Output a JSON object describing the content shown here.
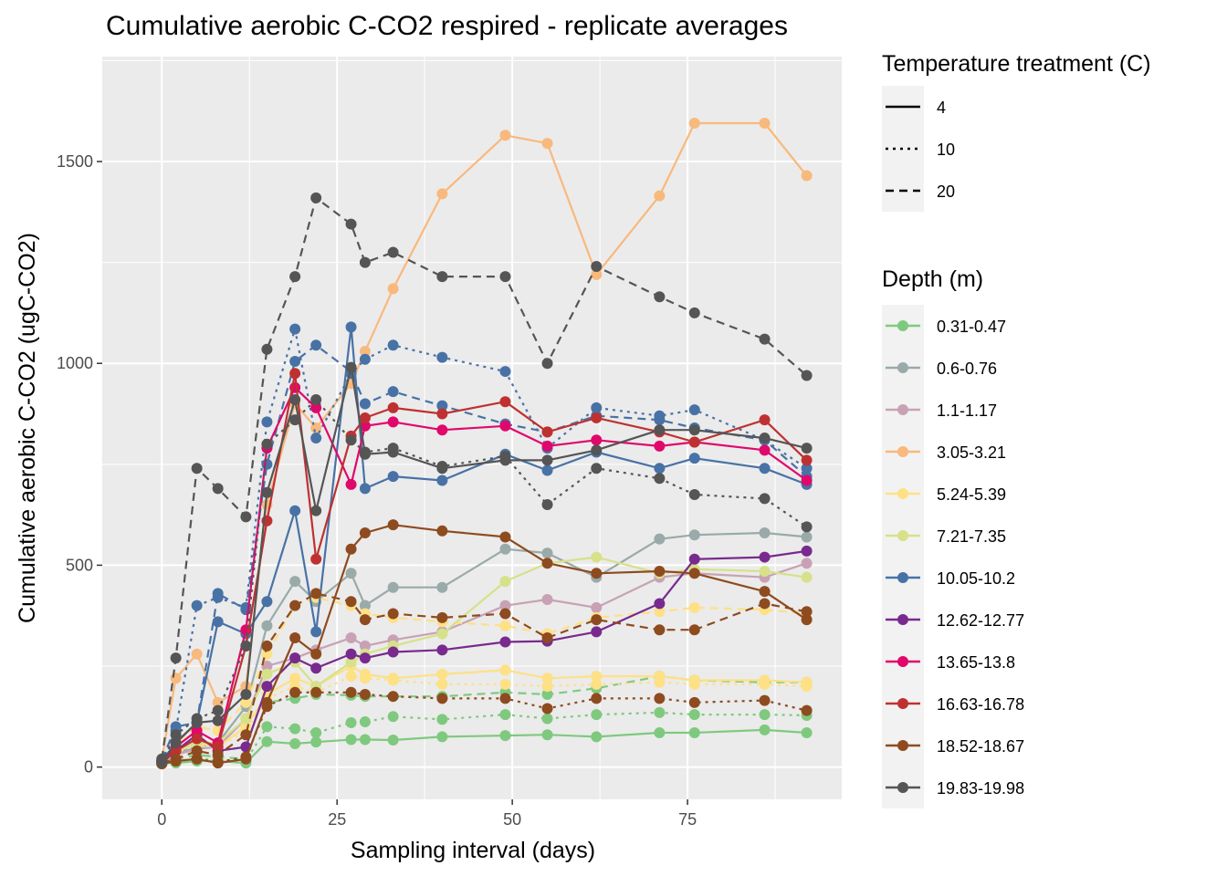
{
  "chart_data": {
    "type": "line",
    "title": "Cumulative aerobic C-CO2 respired - replicate averages",
    "xlabel": "Sampling interval (days)",
    "ylabel": "Cumulative aerobic C-CO2 (ugC-CO2)",
    "xlim": [
      -8.5,
      97
    ],
    "ylim": [
      -80,
      1760
    ],
    "x_ticks": [
      0,
      25,
      50,
      75
    ],
    "y_ticks": [
      0,
      500,
      1000,
      1500
    ],
    "grid": true,
    "x": [
      0,
      2,
      5,
      8,
      12,
      15,
      19,
      22,
      27,
      29,
      33,
      40,
      49,
      55,
      62,
      71,
      76,
      86,
      92
    ],
    "legend_placement": "right",
    "linetype_legend": {
      "title": "Temperature treatment (C)",
      "entries": [
        {
          "label": "4",
          "dash": "solid"
        },
        {
          "label": "10",
          "dash": "dotted"
        },
        {
          "label": "20",
          "dash": "dashed"
        }
      ]
    },
    "color_legend": {
      "title": "Depth (m)",
      "entries": [
        {
          "label": "0.31-0.47",
          "color": "#7fc97f"
        },
        {
          "label": "0.6-0.76",
          "color": "#99aaa9"
        },
        {
          "label": "1.1-1.17",
          "color": "#c8a2b4"
        },
        {
          "label": "3.05-3.21",
          "color": "#f8b97d"
        },
        {
          "label": "5.24-5.39",
          "color": "#fee085"
        },
        {
          "label": "7.21-7.35",
          "color": "#d6e189"
        },
        {
          "label": "10.05-10.2",
          "color": "#4872a6"
        },
        {
          "label": "12.62-12.77",
          "color": "#782a8e"
        },
        {
          "label": "13.65-13.8",
          "color": "#e0086b"
        },
        {
          "label": "16.63-16.78",
          "color": "#bf3131"
        },
        {
          "label": "18.52-18.67",
          "color": "#8e4b1f"
        },
        {
          "label": "19.83-19.98",
          "color": "#555555"
        }
      ]
    },
    "series": [
      {
        "depth": "0.31-0.47",
        "temperature": "4",
        "color": "#7fc97f",
        "dash": "solid",
        "values": [
          10,
          10,
          15,
          15,
          10,
          63,
          58,
          62,
          68,
          68,
          67,
          75,
          78,
          80,
          75,
          85,
          85,
          92,
          85
        ]
      },
      {
        "depth": "0.31-0.47",
        "temperature": "10",
        "color": "#7fc97f",
        "dash": "dotted",
        "values": [
          12,
          15,
          20,
          18,
          15,
          100,
          95,
          85,
          110,
          112,
          125,
          118,
          130,
          120,
          130,
          135,
          130,
          130,
          128
        ]
      },
      {
        "depth": "0.31-0.47",
        "temperature": "20",
        "color": "#7fc97f",
        "dash": "dashed",
        "values": [
          15,
          20,
          30,
          25,
          20,
          160,
          170,
          180,
          178,
          175,
          175,
          175,
          185,
          180,
          195,
          225,
          215,
          210,
          210
        ]
      },
      {
        "depth": "0.6-0.76",
        "temperature": "4",
        "color": "#99aaa9",
        "dash": "solid",
        "values": [
          15,
          35,
          50,
          60,
          150,
          350,
          460,
          410,
          480,
          400,
          445,
          445,
          540,
          530,
          470,
          565,
          575,
          580,
          570
        ]
      },
      {
        "depth": "1.1-1.17",
        "temperature": "4",
        "color": "#c8a2b4",
        "dash": "solid",
        "values": [
          12,
          30,
          45,
          50,
          120,
          250,
          270,
          290,
          320,
          300,
          315,
          335,
          400,
          415,
          395,
          470,
          480,
          470,
          505
        ]
      },
      {
        "depth": "3.05-3.21",
        "temperature": "4",
        "color": "#f8b97d",
        "dash": "solid",
        "values": [
          20,
          220,
          280,
          160,
          200,
          650,
          900,
          840,
          950,
          1030,
          1185,
          1420,
          1565,
          1545,
          1220,
          1415,
          1595,
          1595,
          1465
        ]
      },
      {
        "depth": "5.24-5.39",
        "temperature": "4",
        "color": "#fee085",
        "dash": "solid",
        "values": [
          12,
          40,
          60,
          50,
          100,
          180,
          220,
          200,
          250,
          230,
          220,
          230,
          240,
          220,
          225,
          225,
          215,
          215,
          210
        ]
      },
      {
        "depth": "5.24-5.39",
        "temperature": "10",
        "color": "#fee085",
        "dash": "dotted",
        "values": [
          12,
          35,
          55,
          50,
          90,
          170,
          200,
          185,
          225,
          220,
          215,
          205,
          205,
          200,
          205,
          210,
          205,
          205,
          200
        ]
      },
      {
        "depth": "5.24-5.39",
        "temperature": "20",
        "color": "#fee085",
        "dash": "dashed",
        "values": [
          15,
          60,
          100,
          90,
          160,
          280,
          400,
          420,
          400,
          380,
          370,
          360,
          350,
          330,
          370,
          385,
          395,
          390,
          380
        ]
      },
      {
        "depth": "7.21-7.35",
        "temperature": "4",
        "color": "#d6e189",
        "dash": "solid",
        "values": [
          12,
          40,
          60,
          60,
          120,
          230,
          260,
          200,
          260,
          280,
          300,
          330,
          460,
          505,
          520,
          480,
          490,
          485,
          470
        ]
      },
      {
        "depth": "10.05-10.2",
        "temperature": "4",
        "color": "#4872a6",
        "dash": "solid",
        "values": [
          15,
          60,
          110,
          360,
          330,
          410,
          635,
          335,
          1090,
          690,
          720,
          710,
          775,
          735,
          780,
          740,
          765,
          740,
          700
        ]
      },
      {
        "depth": "10.05-10.2",
        "temperature": "10",
        "color": "#4872a6",
        "dash": "dotted",
        "values": [
          15,
          90,
          400,
          420,
          395,
          855,
          1085,
          815,
          975,
          1010,
          1045,
          1015,
          980,
          790,
          890,
          870,
          885,
          810,
          740
        ]
      },
      {
        "depth": "10.05-10.2",
        "temperature": "20",
        "color": "#4872a6",
        "dash": "dashed",
        "values": [
          18,
          100,
          110,
          430,
          390,
          750,
          1005,
          1045,
          980,
          900,
          930,
          895,
          850,
          830,
          870,
          860,
          840,
          810,
          720
        ]
      },
      {
        "depth": "12.62-12.77",
        "temperature": "4",
        "color": "#782a8e",
        "dash": "solid",
        "values": [
          10,
          40,
          80,
          40,
          50,
          200,
          270,
          245,
          280,
          270,
          285,
          290,
          310,
          312,
          335,
          405,
          515,
          520,
          535
        ]
      },
      {
        "depth": "13.65-13.8",
        "temperature": "4",
        "color": "#e0086b",
        "dash": "solid",
        "values": [
          15,
          50,
          90,
          60,
          340,
          790,
          940,
          890,
          700,
          845,
          855,
          835,
          845,
          795,
          810,
          795,
          805,
          785,
          710
        ]
      },
      {
        "depth": "16.63-16.78",
        "temperature": "4",
        "color": "#bf3131",
        "dash": "solid",
        "values": [
          15,
          40,
          70,
          50,
          300,
          610,
          975,
          515,
          820,
          865,
          890,
          875,
          905,
          830,
          865,
          830,
          805,
          860,
          760
        ]
      },
      {
        "depth": "18.52-18.67",
        "temperature": "4",
        "color": "#8e4b1f",
        "dash": "solid",
        "values": [
          8,
          15,
          20,
          10,
          20,
          160,
          320,
          280,
          540,
          580,
          600,
          585,
          570,
          505,
          480,
          485,
          480,
          435,
          365
        ]
      },
      {
        "depth": "18.52-18.67",
        "temperature": "10",
        "color": "#8e4b1f",
        "dash": "dotted",
        "values": [
          8,
          15,
          20,
          12,
          25,
          150,
          185,
          185,
          185,
          180,
          175,
          170,
          170,
          145,
          170,
          170,
          160,
          165,
          140
        ]
      },
      {
        "depth": "18.52-18.67",
        "temperature": "20",
        "color": "#8e4b1f",
        "dash": "dashed",
        "values": [
          10,
          20,
          40,
          30,
          80,
          300,
          400,
          430,
          410,
          365,
          380,
          370,
          380,
          320,
          365,
          340,
          340,
          405,
          385
        ]
      },
      {
        "depth": "19.83-19.98",
        "temperature": "4",
        "color": "#555555",
        "dash": "solid",
        "values": [
          12,
          60,
          110,
          115,
          180,
          680,
          910,
          635,
          990,
          775,
          780,
          740,
          760,
          760,
          785,
          835,
          835,
          815,
          790
        ]
      },
      {
        "depth": "19.83-19.98",
        "temperature": "10",
        "color": "#555555",
        "dash": "dotted",
        "values": [
          12,
          80,
          120,
          140,
          300,
          800,
          860,
          910,
          810,
          780,
          790,
          745,
          770,
          650,
          740,
          715,
          675,
          665,
          595
        ]
      },
      {
        "depth": "19.83-19.98",
        "temperature": "20",
        "color": "#555555",
        "dash": "dashed",
        "values": [
          20,
          270,
          740,
          690,
          620,
          1035,
          1215,
          1410,
          1345,
          1250,
          1275,
          1215,
          1215,
          1000,
          1240,
          1165,
          1125,
          1060,
          970
        ]
      }
    ]
  }
}
